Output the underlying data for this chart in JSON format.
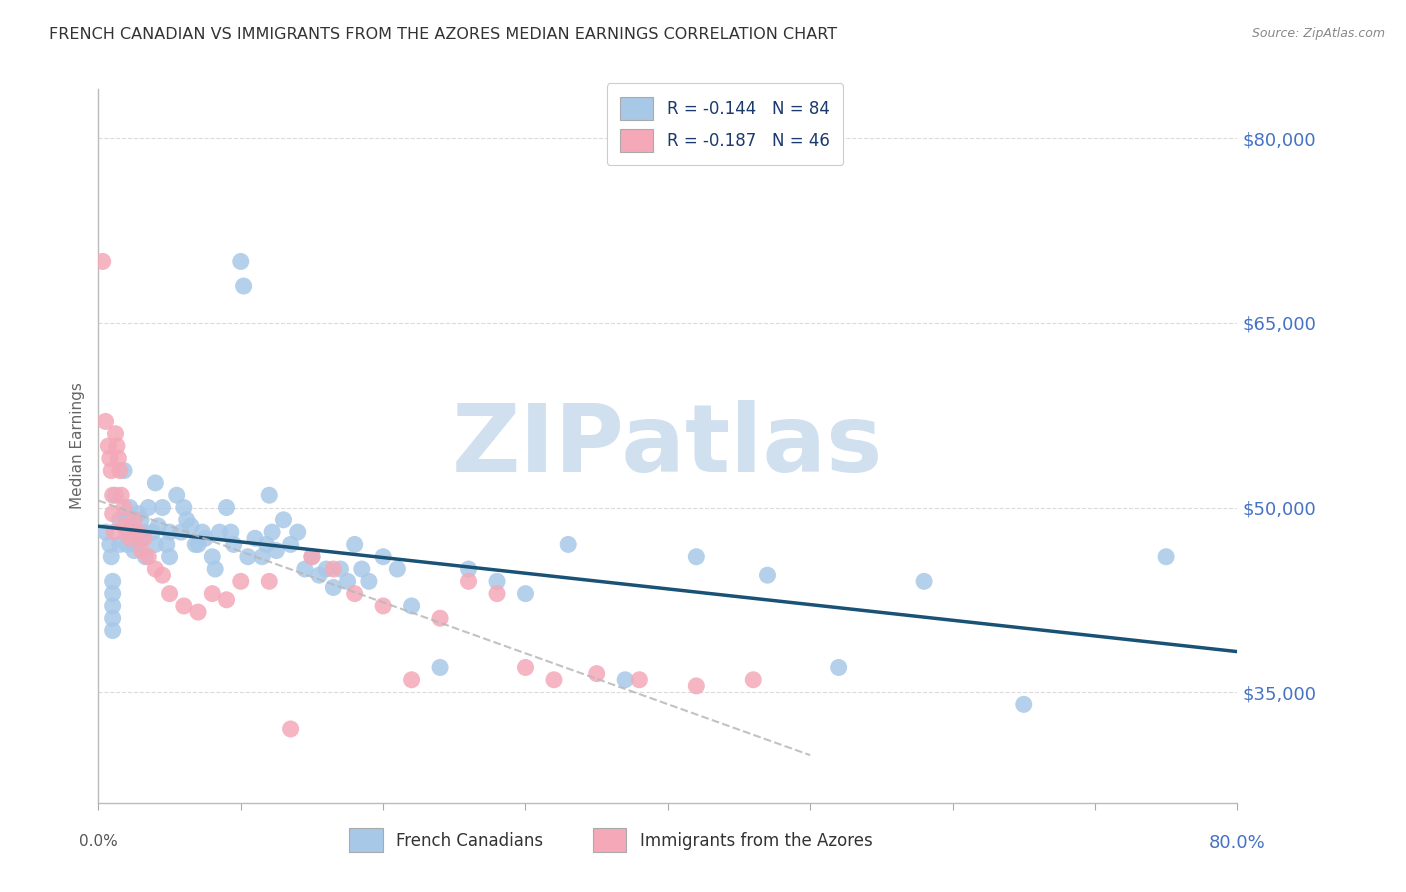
{
  "title": "FRENCH CANADIAN VS IMMIGRANTS FROM THE AZORES MEDIAN EARNINGS CORRELATION CHART",
  "source": "Source: ZipAtlas.com",
  "ylabel": "Median Earnings",
  "ytick_labels": [
    "$35,000",
    "$50,000",
    "$65,000",
    "$80,000"
  ],
  "ytick_values": [
    35000,
    50000,
    65000,
    80000
  ],
  "ymin": 26000,
  "ymax": 84000,
  "xmin": 0.0,
  "xmax": 0.8,
  "series1_label": "French Canadians",
  "series1_R": "-0.144",
  "series1_N": "84",
  "series1_color": "#a8c8e8",
  "series1_line_color": "#1a5276",
  "series2_label": "Immigrants from the Azores",
  "series2_R": "-0.187",
  "series2_N": "46",
  "series2_color": "#f4a8b8",
  "series2_line_color": "#c0a0a8",
  "background_color": "#ffffff",
  "grid_color": "#cccccc",
  "title_color": "#333333",
  "yaxis_label_color": "#4472c4",
  "xaxis_right_color": "#4472c4",
  "watermark": "ZIPatlas",
  "watermark_color": "#d0e0ef",
  "french_canadians_x": [
    0.005,
    0.008,
    0.009,
    0.01,
    0.01,
    0.01,
    0.01,
    0.01,
    0.012,
    0.015,
    0.015,
    0.018,
    0.02,
    0.02,
    0.022,
    0.025,
    0.025,
    0.028,
    0.028,
    0.03,
    0.03,
    0.032,
    0.033,
    0.035,
    0.038,
    0.04,
    0.04,
    0.042,
    0.045,
    0.048,
    0.05,
    0.05,
    0.055,
    0.058,
    0.06,
    0.062,
    0.065,
    0.068,
    0.07,
    0.073,
    0.075,
    0.08,
    0.082,
    0.085,
    0.09,
    0.093,
    0.095,
    0.1,
    0.102,
    0.105,
    0.11,
    0.115,
    0.118,
    0.12,
    0.122,
    0.125,
    0.13,
    0.135,
    0.14,
    0.145,
    0.15,
    0.155,
    0.16,
    0.165,
    0.17,
    0.175,
    0.18,
    0.185,
    0.19,
    0.2,
    0.21,
    0.22,
    0.24,
    0.26,
    0.28,
    0.3,
    0.33,
    0.37,
    0.42,
    0.47,
    0.52,
    0.58,
    0.65,
    0.75
  ],
  "french_canadians_y": [
    48000,
    47000,
    46000,
    44000,
    43000,
    42000,
    41000,
    40000,
    51000,
    49000,
    47000,
    53000,
    49000,
    47000,
    50000,
    48000,
    46500,
    49500,
    47000,
    49000,
    47500,
    48000,
    46000,
    50000,
    48000,
    52000,
    47000,
    48500,
    50000,
    47000,
    48000,
    46000,
    51000,
    48000,
    50000,
    49000,
    48500,
    47000,
    47000,
    48000,
    47500,
    46000,
    45000,
    48000,
    50000,
    48000,
    47000,
    70000,
    68000,
    46000,
    47500,
    46000,
    47000,
    51000,
    48000,
    46500,
    49000,
    47000,
    48000,
    45000,
    46000,
    44500,
    45000,
    43500,
    45000,
    44000,
    47000,
    45000,
    44000,
    46000,
    45000,
    42000,
    37000,
    45000,
    44000,
    43000,
    47000,
    36000,
    46000,
    44500,
    37000,
    44000,
    34000,
    46000
  ],
  "azores_x": [
    0.003,
    0.005,
    0.007,
    0.008,
    0.009,
    0.01,
    0.01,
    0.011,
    0.012,
    0.013,
    0.014,
    0.015,
    0.016,
    0.018,
    0.018,
    0.02,
    0.022,
    0.025,
    0.028,
    0.03,
    0.032,
    0.035,
    0.04,
    0.045,
    0.05,
    0.06,
    0.07,
    0.08,
    0.09,
    0.1,
    0.12,
    0.135,
    0.15,
    0.165,
    0.18,
    0.2,
    0.22,
    0.24,
    0.26,
    0.28,
    0.3,
    0.32,
    0.35,
    0.38,
    0.42,
    0.46
  ],
  "azores_y": [
    70000,
    57000,
    55000,
    54000,
    53000,
    51000,
    49500,
    48000,
    56000,
    55000,
    54000,
    53000,
    51000,
    50000,
    48500,
    48000,
    47500,
    49000,
    48000,
    46500,
    47500,
    46000,
    45000,
    44500,
    43000,
    42000,
    41500,
    43000,
    42500,
    44000,
    44000,
    32000,
    46000,
    45000,
    43000,
    42000,
    36000,
    41000,
    44000,
    43000,
    37000,
    36000,
    36500,
    36000,
    35500,
    36000
  ]
}
